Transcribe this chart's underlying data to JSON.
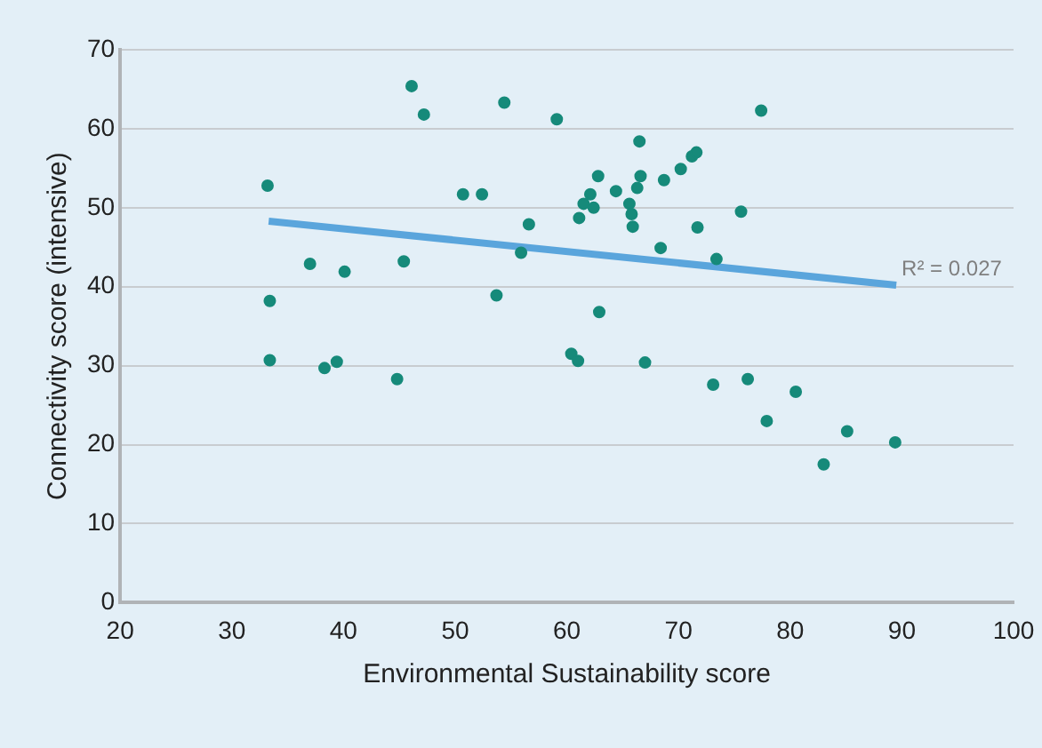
{
  "chart_data": {
    "type": "scatter",
    "xlabel": "Environmental Sustainability score",
    "ylabel": "Connectivity score (intensive)",
    "xlim": [
      20,
      100
    ],
    "xticks": [
      20,
      30,
      40,
      50,
      60,
      70,
      80,
      90,
      100
    ],
    "ylim": [
      0,
      70
    ],
    "yticks": [
      0,
      10,
      20,
      30,
      40,
      50,
      60,
      70
    ],
    "grid": "y",
    "legend": false,
    "marker": "circle",
    "series": [
      {
        "color": "#168a7a",
        "x": [
          33.2,
          33.4,
          33.4,
          37.0,
          38.3,
          39.4,
          40.1,
          44.8,
          45.4,
          46.1,
          47.2,
          50.7,
          52.4,
          54.4,
          53.7,
          56.6,
          55.9,
          59.1,
          62.9,
          62.8,
          62.1,
          61.5,
          62.4,
          61.1,
          64.4,
          66.5,
          66.6,
          66.3,
          65.6,
          65.8,
          65.9,
          68.7,
          68.4,
          70.2,
          71.2,
          71.6,
          71.7,
          73.4,
          75.6,
          77.4,
          60.4,
          61.0,
          67.0,
          73.1,
          76.2,
          80.5,
          77.9,
          85.1,
          89.4,
          83.0
        ],
        "values": [
          52.8,
          38.2,
          30.7,
          42.9,
          29.7,
          30.5,
          41.9,
          28.3,
          43.2,
          65.4,
          61.8,
          51.7,
          51.7,
          63.3,
          38.9,
          47.9,
          44.3,
          61.2,
          36.8,
          54.0,
          51.7,
          50.5,
          50.0,
          48.7,
          52.1,
          58.4,
          54.0,
          52.5,
          50.5,
          49.2,
          47.6,
          53.5,
          44.9,
          54.9,
          56.5,
          57.0,
          47.5,
          43.5,
          49.5,
          62.3,
          31.5,
          30.6,
          30.4,
          27.6,
          28.3,
          26.7,
          23.0,
          21.7,
          20.3,
          17.5
        ]
      },
      {
        "type": "line",
        "color": "#5aa5dc",
        "marker": "none",
        "x": [
          33.3,
          89.5
        ],
        "values": [
          48.3,
          40.2
        ]
      }
    ],
    "annotations": [
      {
        "text": "R² = 0.027",
        "x": 89.5,
        "y": 40.2
      }
    ]
  }
}
